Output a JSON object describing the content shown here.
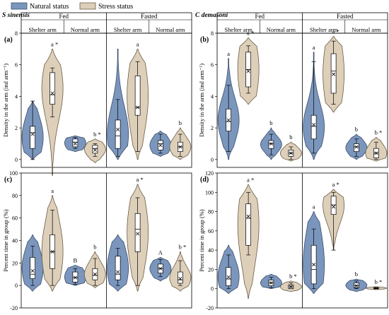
{
  "legend": [
    {
      "label": "Natural status",
      "color": "#7b96bd"
    },
    {
      "label": "Stress status",
      "color": "#ddcfb9"
    }
  ],
  "chart_data": [
    {
      "type": "violin",
      "panel_label": "(a)",
      "species": "S sinensis",
      "ylabel": "Density in the arm (ind arm⁻¹)",
      "ylim": [
        -0.5,
        8
      ],
      "yticks": [
        0,
        2,
        4,
        6,
        8
      ],
      "groups": [
        "Fed",
        "Fasted"
      ],
      "arms": [
        "Shelter arm",
        "Normal arm",
        "Shelter arm",
        "Normal arm"
      ],
      "series": [
        {
          "name": "Natural status",
          "data": [
            {
              "min": 0.0,
              "max": 3.7,
              "q1": 0.7,
              "median": 1.7,
              "q3": 2.1,
              "mean": 1.6,
              "lo": 0.0,
              "hi": 3.7,
              "sig": ""
            },
            {
              "min": 0.5,
              "max": 1.5,
              "q1": 0.8,
              "median": 1.1,
              "q3": 1.3,
              "mean": 1.0,
              "lo": 0.7,
              "hi": 1.4,
              "sig": ""
            },
            {
              "min": 0.0,
              "max": 7.0,
              "q1": 0.7,
              "median": 1.5,
              "q3": 2.5,
              "mean": 1.9,
              "lo": 0.2,
              "hi": 3.8,
              "sig": ""
            },
            {
              "min": 0.2,
              "max": 1.8,
              "q1": 0.6,
              "median": 1.0,
              "q3": 1.2,
              "mean": 0.9,
              "lo": 0.4,
              "hi": 1.6,
              "sig": ""
            }
          ]
        },
        {
          "name": "Stress status",
          "data": [
            {
              "min": -1.0,
              "max": 7.0,
              "q1": 3.5,
              "median": 4.1,
              "q3": 5.5,
              "mean": 4.2,
              "lo": 2.7,
              "hi": 5.8,
              "sig": "a *"
            },
            {
              "min": -0.2,
              "max": 1.3,
              "q1": 0.4,
              "median": 0.7,
              "q3": 0.9,
              "mean": 0.6,
              "lo": 0.2,
              "hi": 1.0,
              "sig": "b *"
            },
            {
              "min": 0.0,
              "max": 7.0,
              "q1": 2.8,
              "median": 3.3,
              "q3": 5.3,
              "mean": 3.3,
              "lo": 0.5,
              "hi": 6.2,
              "sig": "a"
            },
            {
              "min": 0.0,
              "max": 2.0,
              "q1": 0.5,
              "median": 0.8,
              "q3": 1.1,
              "mean": 0.8,
              "lo": 0.2,
              "hi": 1.6,
              "sig": "b"
            }
          ]
        }
      ]
    },
    {
      "type": "violin",
      "panel_label": "(b)",
      "species": "C demasoni",
      "ylabel": "Density in the arm (ind arm⁻¹)",
      "ylim": [
        -0.5,
        8
      ],
      "yticks": [
        0,
        2,
        4,
        6,
        8
      ],
      "groups": [
        "Fed",
        "Fasted"
      ],
      "arms": [
        "Shelter arm",
        "Normal arm",
        "Shelter arm",
        "Normal arm"
      ],
      "series": [
        {
          "name": "Natural status",
          "data": [
            {
              "min": 0.0,
              "max": 6.4,
              "q1": 1.8,
              "median": 2.4,
              "q3": 3.2,
              "mean": 2.5,
              "lo": 0.5,
              "hi": 4.7,
              "sig": "a"
            },
            {
              "min": 0.0,
              "max": 2.0,
              "q1": 0.7,
              "median": 1.0,
              "q3": 1.2,
              "mean": 1.0,
              "lo": 0.3,
              "hi": 1.6,
              "sig": "b"
            },
            {
              "min": 0.0,
              "max": 6.8,
              "q1": 1.3,
              "median": 2.1,
              "q3": 2.8,
              "mean": 2.2,
              "lo": 0.4,
              "hi": 6.2,
              "sig": "a"
            },
            {
              "min": 0.0,
              "max": 1.6,
              "q1": 0.5,
              "median": 0.8,
              "q3": 1.0,
              "mean": 0.8,
              "lo": 0.2,
              "hi": 1.3,
              "sig": "b"
            }
          ]
        },
        {
          "name": "Stress status",
          "data": [
            {
              "min": 3.5,
              "max": 7.7,
              "q1": 4.6,
              "median": 5.7,
              "q3": 6.8,
              "mean": 5.6,
              "lo": 4.2,
              "hi": 7.2,
              "sig": "a *"
            },
            {
              "min": -0.1,
              "max": 1.1,
              "q1": 0.2,
              "median": 0.4,
              "q3": 0.6,
              "mean": 0.4,
              "lo": 0.0,
              "hi": 0.8,
              "sig": "b"
            },
            {
              "min": 3.0,
              "max": 7.8,
              "q1": 4.2,
              "median": 5.6,
              "q3": 6.7,
              "mean": 5.4,
              "lo": 3.5,
              "hi": 7.5,
              "sig": "a *"
            },
            {
              "min": -0.1,
              "max": 1.4,
              "q1": 0.1,
              "median": 0.4,
              "q3": 0.7,
              "mean": 0.4,
              "lo": 0.0,
              "hi": 1.1,
              "sig": "b *"
            }
          ]
        }
      ]
    },
    {
      "type": "violin",
      "panel_label": "(c)",
      "ylabel": "Percent time in group (%)",
      "ylim": [
        -20,
        100
      ],
      "yticks": [
        -20,
        0,
        20,
        40,
        60,
        80,
        100
      ],
      "groups": [
        "Fed",
        "Fasted"
      ],
      "arms": [
        "Shelter arm",
        "Normal arm",
        "Shelter arm",
        "Normal arm"
      ],
      "series": [
        {
          "name": "Natural status",
          "data": [
            {
              "min": -5,
              "max": 45,
              "q1": 6,
              "median": 10,
              "q3": 25,
              "mean": 13,
              "lo": 0,
              "hi": 35,
              "sig": ""
            },
            {
              "min": 0,
              "max": 18,
              "q1": 3,
              "median": 7,
              "q3": 12,
              "mean": 7,
              "lo": 1,
              "hi": 15,
              "sig": "B"
            },
            {
              "min": -5,
              "max": 45,
              "q1": 5,
              "median": 10,
              "q3": 26,
              "mean": 12,
              "lo": 0,
              "hi": 33,
              "sig": ""
            },
            {
              "min": 4,
              "max": 25,
              "q1": 11,
              "median": 15,
              "q3": 19,
              "mean": 15,
              "lo": 8,
              "hi": 23,
              "sig": "A"
            }
          ]
        },
        {
          "name": "Stress status",
          "data": [
            {
              "min": -5,
              "max": 80,
              "q1": 15,
              "median": 30,
              "q3": 45,
              "mean": 30,
              "lo": 0,
              "hi": 67,
              "sig": "a"
            },
            {
              "min": -2,
              "max": 30,
              "q1": 5,
              "median": 9,
              "q3": 15,
              "mean": 10,
              "lo": 0,
              "hi": 24,
              "sig": "b"
            },
            {
              "min": -5,
              "max": 90,
              "q1": 30,
              "median": 50,
              "q3": 64,
              "mean": 46,
              "lo": 0,
              "hi": 78,
              "sig": "a *"
            },
            {
              "min": -5,
              "max": 30,
              "q1": 2,
              "median": 5,
              "q3": 12,
              "mean": 6,
              "lo": 0,
              "hi": 22,
              "sig": "b *"
            }
          ]
        }
      ]
    },
    {
      "type": "violin",
      "panel_label": "(d)",
      "ylabel": "Percent time in group (%)",
      "ylim": [
        -20,
        120
      ],
      "yticks": [
        -20,
        0,
        20,
        40,
        60,
        80,
        100,
        120
      ],
      "groups": [
        "Fed",
        "Fasted"
      ],
      "arms": [
        "Shelter arm",
        "Normal arm",
        "Shelter arm",
        "Normal arm"
      ],
      "series": [
        {
          "name": "Natural status",
          "data": [
            {
              "min": -5,
              "max": 45,
              "q1": 3,
              "median": 10,
              "q3": 22,
              "mean": 12,
              "lo": 0,
              "hi": 35,
              "sig": ""
            },
            {
              "min": 0,
              "max": 15,
              "q1": 3,
              "median": 6,
              "q3": 9,
              "mean": 6,
              "lo": 1,
              "hi": 12,
              "sig": ""
            },
            {
              "min": -5,
              "max": 80,
              "q1": 5,
              "median": 20,
              "q3": 45,
              "mean": 25,
              "lo": 0,
              "hi": 62,
              "sig": "a"
            },
            {
              "min": -3,
              "max": 10,
              "q1": 1,
              "median": 3,
              "q3": 6,
              "mean": 3,
              "lo": 0,
              "hi": 8,
              "sig": "b"
            }
          ]
        },
        {
          "name": "Stress status",
          "data": [
            {
              "min": -10,
              "max": 108,
              "q1": 45,
              "median": 73,
              "q3": 88,
              "mean": 75,
              "lo": 35,
              "hi": 100,
              "sig": "a *"
            },
            {
              "min": -3,
              "max": 8,
              "q1": 0,
              "median": 2,
              "q3": 4,
              "mean": 2,
              "lo": 0,
              "hi": 6,
              "sig": "b *"
            },
            {
              "min": 40,
              "max": 103,
              "q1": 77,
              "median": 87,
              "q3": 96,
              "mean": 85,
              "lo": 40,
              "hi": 100,
              "sig": "a *"
            },
            {
              "min": -1,
              "max": 2,
              "q1": 0,
              "median": 0.5,
              "q3": 1,
              "mean": 0.5,
              "lo": 0,
              "hi": 1,
              "sig": "b *"
            }
          ]
        }
      ]
    }
  ]
}
